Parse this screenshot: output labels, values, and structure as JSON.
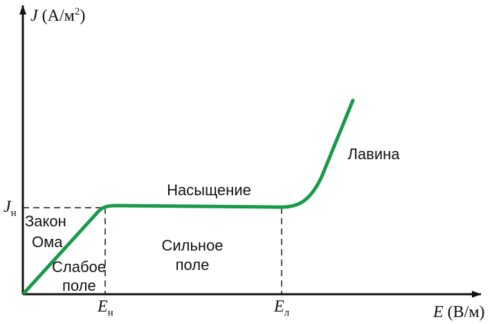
{
  "axes": {
    "y_label": {
      "symbol": "J",
      "unit": "(А/м",
      "exponent": "2",
      "close": ")"
    },
    "x_label": {
      "symbol": "E",
      "unit": "(В/м)"
    },
    "j_sat": {
      "symbol": "J",
      "sub": "н"
    },
    "e_sat": {
      "symbol": "E",
      "sub": "н"
    },
    "e_aval": {
      "symbol": "E",
      "sub": "л"
    }
  },
  "regions": {
    "ohm": [
      "Закон",
      "Ома"
    ],
    "weak_field": [
      "Слабое",
      "поле"
    ],
    "strong_field": [
      "Сильное",
      "поле"
    ],
    "saturation": "Насыщение",
    "avalanche": "Лавина"
  }
}
